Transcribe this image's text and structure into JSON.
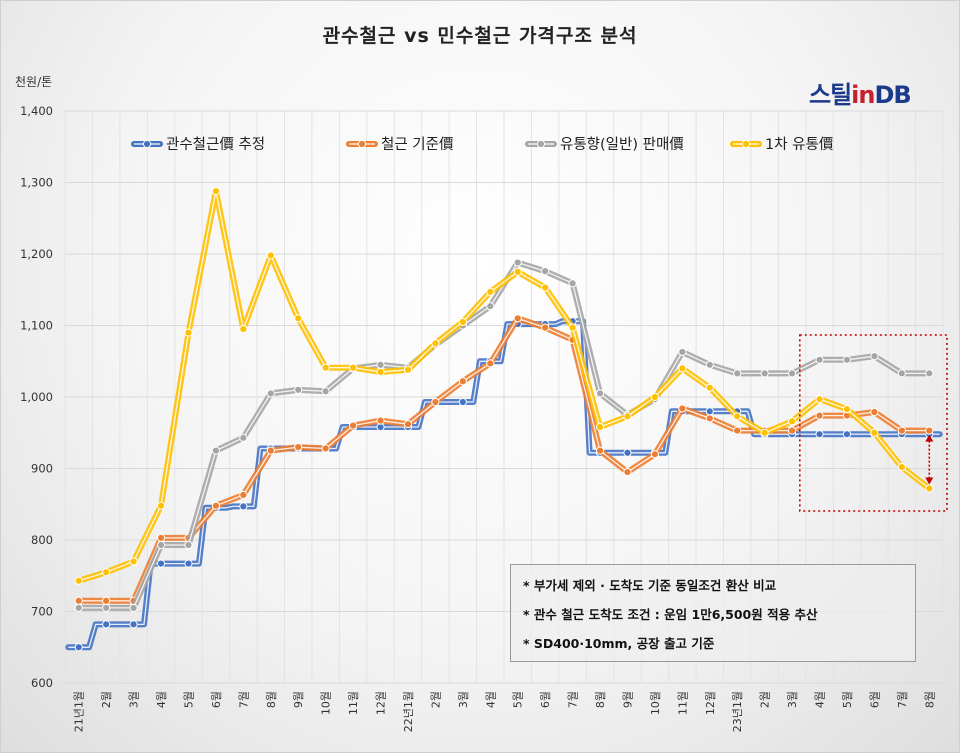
{
  "title": "관수철근 vs 민수철근 가격구조 분석",
  "unit": "천원/톤",
  "logo": {
    "part1": "스틸",
    "part2": "in",
    "part3": "DB"
  },
  "notes": [
    "* 부가세 제외 · 도착도 기준 동일조건 환산 비교",
    "* 관수 철근 도착도 조건 : 운임 1만6,500원 적용 추산",
    "* SD400·10mm, 공장 출고 기준"
  ],
  "chart_data": {
    "type": "line",
    "title": "관수철근 vs 민수철근 가격구조 분석",
    "ylabel": "천원/톤",
    "ylim": [
      600,
      1400
    ],
    "yticks": [
      600,
      700,
      800,
      900,
      1000,
      1100,
      1200,
      1300,
      1400
    ],
    "ytick_labels": [
      "600",
      "700",
      "800",
      "900",
      "1,000",
      "1,100",
      "1,200",
      "1,300",
      "1,400"
    ],
    "grid": true,
    "legend_position": "top",
    "categories": [
      "21년1월",
      "2월",
      "3월",
      "4월",
      "5월",
      "6월",
      "7월",
      "8월",
      "9월",
      "10월",
      "11월",
      "12월",
      "22년1월",
      "2월",
      "3월",
      "4월",
      "5월",
      "6월",
      "7월",
      "8월",
      "9월",
      "10월",
      "11월",
      "12월",
      "23년1월",
      "2월",
      "3월",
      "4월",
      "5월",
      "6월",
      "7월",
      "8월"
    ],
    "series": [
      {
        "name": "관수철근價 추정",
        "color": "#4472c4",
        "line_style": "steps",
        "values": [
          650,
          682,
          682,
          767,
          767,
          845,
          847,
          928,
          928,
          928,
          958,
          958,
          958,
          993,
          993,
          1050,
          1102,
          1102,
          1106,
          922,
          922,
          922,
          980,
          980,
          980,
          948,
          948,
          948,
          948,
          948,
          948,
          948
        ]
      },
      {
        "name": "철근 기준價",
        "color": "#ed7d31",
        "line_style": "straight",
        "values": [
          715,
          715,
          715,
          803,
          803,
          848,
          863,
          925,
          930,
          928,
          960,
          967,
          962,
          993,
          1022,
          1047,
          1110,
          1097,
          1080,
          925,
          895,
          920,
          984,
          970,
          953,
          953,
          953,
          974,
          974,
          979,
          953,
          953
        ]
      },
      {
        "name": "유통향(일반) 판매價",
        "color": "#a5a5a5",
        "line_style": "straight",
        "values": [
          705,
          705,
          705,
          793,
          793,
          925,
          943,
          1005,
          1010,
          1008,
          1040,
          1045,
          1041,
          1073,
          1100,
          1127,
          1188,
          1176,
          1159,
          1005,
          975,
          997,
          1063,
          1045,
          1033,
          1033,
          1033,
          1052,
          1052,
          1057,
          1033,
          1033
        ]
      },
      {
        "name": "1차 유통價",
        "color": "#ffc000",
        "line_style": "straight",
        "values": [
          743,
          755,
          770,
          848,
          1090,
          1288,
          1095,
          1198,
          1110,
          1041,
          1041,
          1035,
          1038,
          1075,
          1105,
          1147,
          1175,
          1153,
          1097,
          958,
          973,
          1000,
          1040,
          1013,
          973,
          950,
          966,
          997,
          983,
          950,
          902,
          872
        ]
      }
    ],
    "annotation": {
      "type": "dotted-box",
      "from_category": "4월",
      "to_category": "8월",
      "arrow": "red double arrow on 8월 from 953 to 872"
    }
  }
}
